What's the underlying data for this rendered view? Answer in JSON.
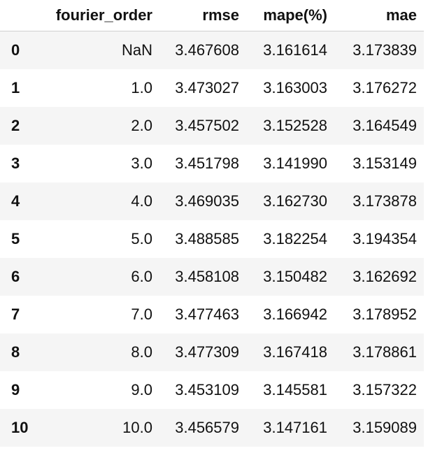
{
  "table": {
    "columns": [
      "",
      "fourier_order",
      "rmse",
      "mape(%)",
      "mae"
    ],
    "rows": [
      {
        "index": "0",
        "fourier_order": "NaN",
        "rmse": "3.467608",
        "mape": "3.161614",
        "mae": "3.173839"
      },
      {
        "index": "1",
        "fourier_order": "1.0",
        "rmse": "3.473027",
        "mape": "3.163003",
        "mae": "3.176272"
      },
      {
        "index": "2",
        "fourier_order": "2.0",
        "rmse": "3.457502",
        "mape": "3.152528",
        "mae": "3.164549"
      },
      {
        "index": "3",
        "fourier_order": "3.0",
        "rmse": "3.451798",
        "mape": "3.141990",
        "mae": "3.153149"
      },
      {
        "index": "4",
        "fourier_order": "4.0",
        "rmse": "3.469035",
        "mape": "3.162730",
        "mae": "3.173878"
      },
      {
        "index": "5",
        "fourier_order": "5.0",
        "rmse": "3.488585",
        "mape": "3.182254",
        "mae": "3.194354"
      },
      {
        "index": "6",
        "fourier_order": "6.0",
        "rmse": "3.458108",
        "mape": "3.150482",
        "mae": "3.162692"
      },
      {
        "index": "7",
        "fourier_order": "7.0",
        "rmse": "3.477463",
        "mape": "3.166942",
        "mae": "3.178952"
      },
      {
        "index": "8",
        "fourier_order": "8.0",
        "rmse": "3.477309",
        "mape": "3.167418",
        "mae": "3.178861"
      },
      {
        "index": "9",
        "fourier_order": "9.0",
        "rmse": "3.453109",
        "mape": "3.145581",
        "mae": "3.157322"
      },
      {
        "index": "10",
        "fourier_order": "10.0",
        "rmse": "3.456579",
        "mape": "3.147161",
        "mae": "3.159089"
      }
    ]
  }
}
